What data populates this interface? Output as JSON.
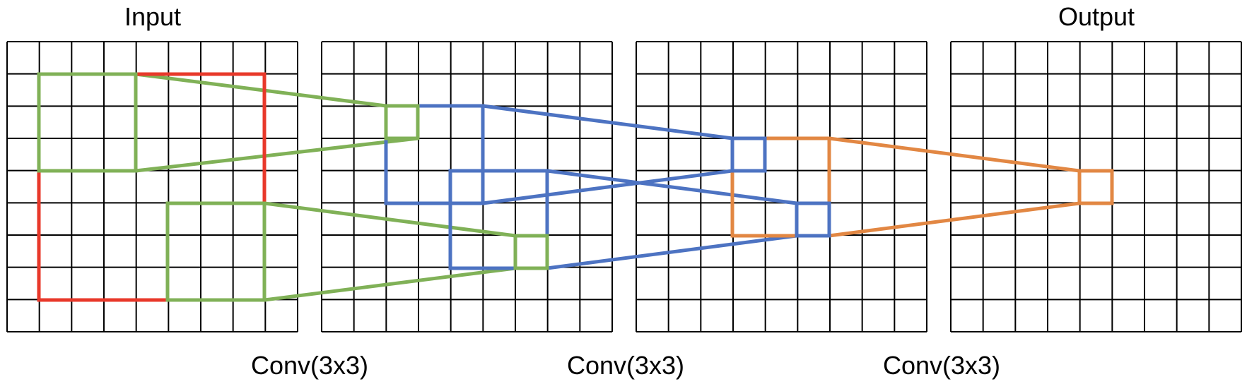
{
  "labels": {
    "input": "Input",
    "output": "Output",
    "conv_1": "Conv(3x3)",
    "conv_2": "Conv(3x3)",
    "conv_3": "Conv(3x3)"
  },
  "grid": {
    "count": 4,
    "rows": 9,
    "cols": 9,
    "line_color": "#000000"
  },
  "colors": {
    "red": "#e8382a",
    "green": "#80b157",
    "blue": "#4d73c2",
    "orange": "#e28743"
  }
}
